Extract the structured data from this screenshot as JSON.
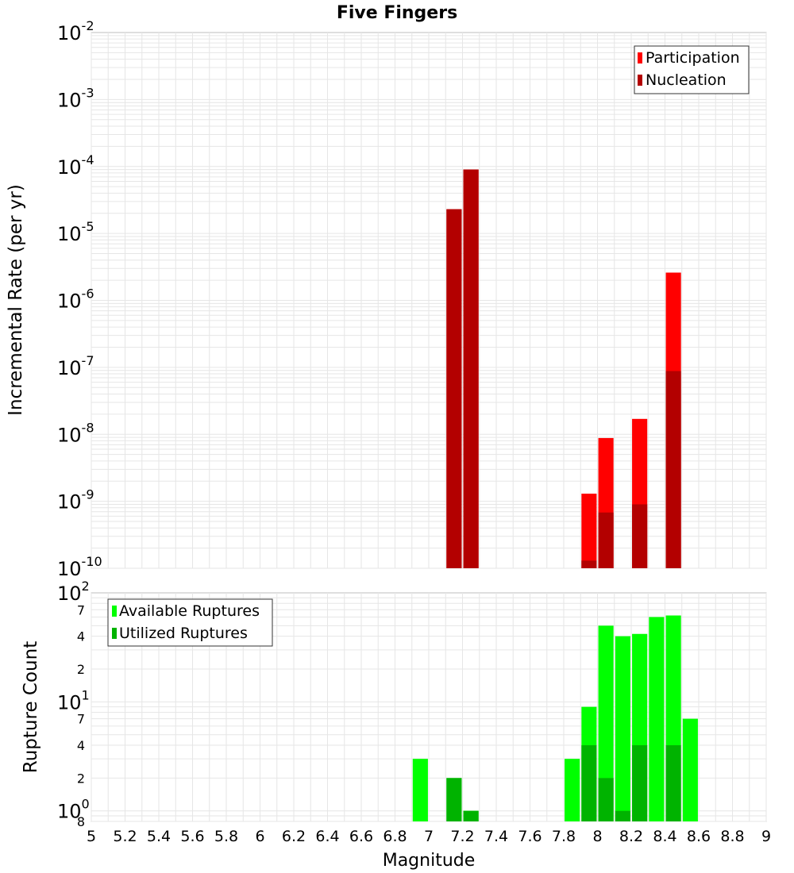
{
  "title": "Five Fingers",
  "xlabel": "Magnitude",
  "x_ticks": [
    "5",
    "5.2",
    "5.4",
    "5.6",
    "5.8",
    "6",
    "6.2",
    "6.4",
    "6.6",
    "6.8",
    "7",
    "7.2",
    "7.4",
    "7.6",
    "7.8",
    "8",
    "8.2",
    "8.4",
    "8.6",
    "8.8",
    "9"
  ],
  "colors": {
    "participation": "#ff0000",
    "nucleation": "#b30000",
    "available": "#00ff00",
    "utilized": "#00b300",
    "grid": "#e6e6e6",
    "frame": "#bdbdbd"
  },
  "chart_data": [
    {
      "type": "bar",
      "title": "Five Fingers",
      "ylabel": "Incremental Rate (per yr)",
      "yscale": "log",
      "xlim": [
        5,
        9
      ],
      "ylim": [
        1e-10,
        0.01
      ],
      "grid": true,
      "legend_position": "top-right",
      "y_ticks": [
        {
          "base": "10",
          "exp": "-2"
        },
        {
          "base": "10",
          "exp": "-3"
        },
        {
          "base": "10",
          "exp": "-4"
        },
        {
          "base": "10",
          "exp": "-5"
        },
        {
          "base": "10",
          "exp": "-6"
        },
        {
          "base": "10",
          "exp": "-7"
        },
        {
          "base": "10",
          "exp": "-8"
        },
        {
          "base": "10",
          "exp": "-9"
        },
        {
          "base": "10",
          "exp": "-10"
        }
      ],
      "x": [
        7.15,
        7.25,
        7.95,
        8.05,
        8.25,
        8.45
      ],
      "series": [
        {
          "name": "Participation",
          "values": [
            2.3e-05,
            9e-05,
            1.3e-09,
            8.8e-09,
            1.7e-08,
            2.6e-06
          ]
        },
        {
          "name": "Nucleation",
          "values": [
            2.3e-05,
            9e-05,
            1.3e-10,
            6.8e-10,
            9e-10,
            8.8e-08
          ]
        }
      ]
    },
    {
      "type": "bar",
      "ylabel": "Rupture Count",
      "yscale": "log",
      "xlim": [
        5,
        9
      ],
      "ylim": [
        0.8,
        100
      ],
      "grid": true,
      "legend_position": "top-left",
      "y_major_ticks": [
        {
          "base": "10",
          "exp": "2"
        },
        {
          "base": "10",
          "exp": "1"
        },
        {
          "base": "10",
          "exp": "0"
        }
      ],
      "y_minor_labels": [
        "7",
        "4",
        "2",
        "7",
        "4",
        "2",
        "8"
      ],
      "x": [
        6.95,
        7.15,
        7.25,
        7.85,
        7.95,
        8.05,
        8.15,
        8.25,
        8.35,
        8.45,
        8.55
      ],
      "series": [
        {
          "name": "Available Ruptures",
          "values": [
            3,
            2,
            1,
            3,
            9,
            50,
            40,
            42,
            60,
            62,
            7
          ]
        },
        {
          "name": "Utilized Ruptures",
          "values": [
            0,
            2,
            1,
            0,
            4,
            2,
            1,
            4,
            0,
            4,
            0
          ]
        }
      ]
    }
  ]
}
